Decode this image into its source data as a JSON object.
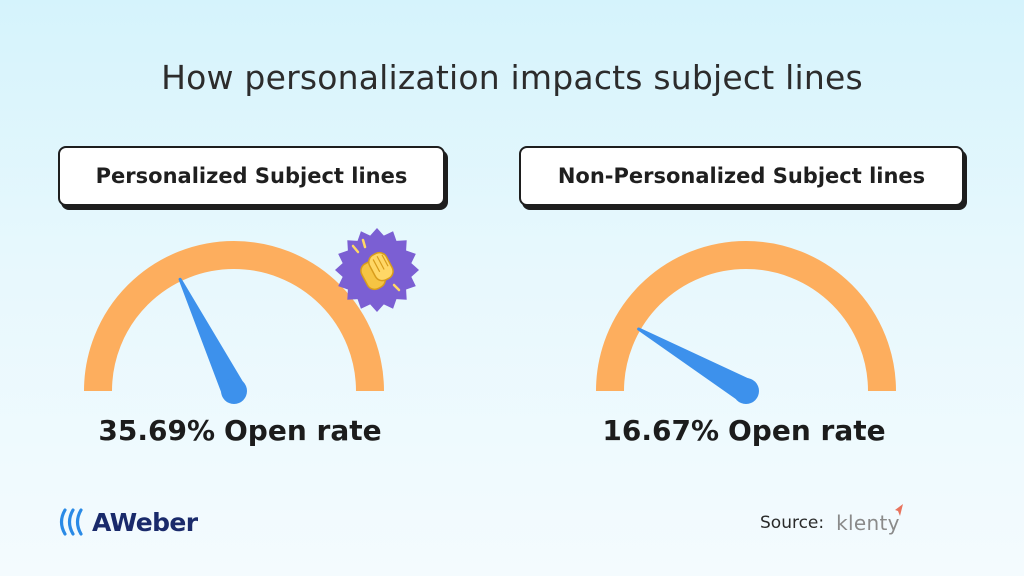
{
  "title": "How personalization impacts subject lines",
  "chart_data": [
    {
      "type": "gauge",
      "label": "Personalized Subject lines",
      "value": 35.69,
      "unit": "%",
      "value_text": "35.69%",
      "caption": "Open rate",
      "range": [
        0,
        100
      ],
      "badge_icon": "clapping-hands-icon"
    },
    {
      "type": "gauge",
      "label": "Non-Personalized Subject lines",
      "value": 16.67,
      "unit": "%",
      "value_text": "16.67%",
      "caption": "Open rate",
      "range": [
        0,
        100
      ]
    }
  ],
  "colors": {
    "arc": "#fdae5e",
    "needle": "#3d91ec",
    "badge": "#7b5fd3",
    "text": "#1f1f1f",
    "brand": "#1a2a6b",
    "source_brand": "#8a8a8a",
    "source_mark": "#e8735d"
  },
  "footer": {
    "brand": "AWeber",
    "brand_icon": "aweber-waves-icon",
    "source_label": "Source:",
    "source_brand": "klenty",
    "source_icon": "klenty-paper-plane-icon"
  }
}
